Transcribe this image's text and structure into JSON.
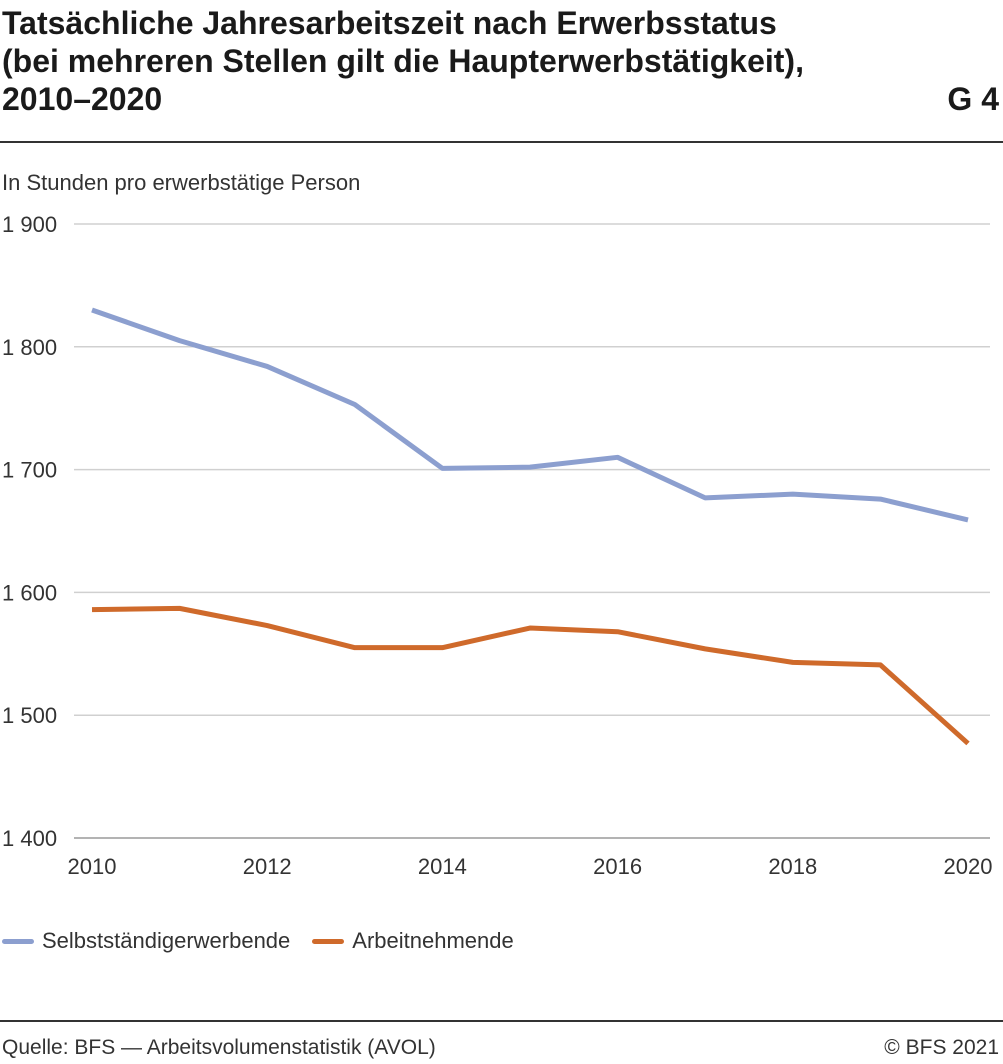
{
  "header": {
    "title_lines": [
      "Tatsächliche Jahresarbeitszeit nach Erwerbsstatus",
      "(bei mehreren Stellen gilt die Haupterwerbstätigkeit),",
      "2010–2020"
    ],
    "figure_id": "G 4"
  },
  "footer": {
    "source": "Quelle: BFS — Arbeitsvolumenstatistik (AVOL)",
    "copyright": "© BFS 2021"
  },
  "chart_data": {
    "type": "line",
    "title": "Tatsächliche Jahresarbeitszeit nach Erwerbsstatus (bei mehreren Stellen gilt die Haupterwerbstätigkeit), 2010–2020",
    "ylabel": "In Stunden pro erwerbstätige Person",
    "xlabel": "",
    "x": [
      2010,
      2011,
      2012,
      2013,
      2014,
      2015,
      2016,
      2017,
      2018,
      2019,
      2020
    ],
    "xlim": [
      2010,
      2020
    ],
    "ylim": [
      1400,
      1900
    ],
    "x_ticks": [
      "2010",
      "2012",
      "2014",
      "2016",
      "2018",
      "2020"
    ],
    "y_ticks": [
      "1 400",
      "1 500",
      "1 600",
      "1 700",
      "1 800",
      "1 900"
    ],
    "grid": "horizontal",
    "legend_position": "bottom-left",
    "series": [
      {
        "name": "Selbstständigerwerbende",
        "color": "#8c9fcf",
        "values": [
          1830,
          1805,
          1784,
          1753,
          1701,
          1702,
          1710,
          1677,
          1680,
          1676,
          1659
        ]
      },
      {
        "name": "Arbeitnehmende",
        "color": "#cf6a2b",
        "values": [
          1586,
          1587,
          1573,
          1555,
          1555,
          1571,
          1568,
          1554,
          1543,
          1541,
          1477
        ]
      }
    ]
  }
}
